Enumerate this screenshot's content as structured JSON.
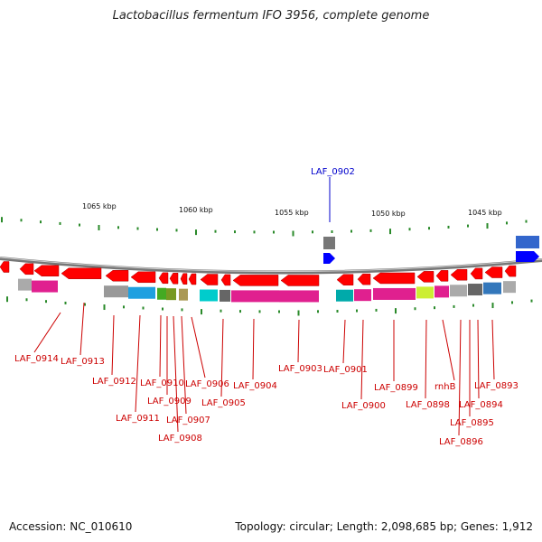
{
  "title": "Lactobacillus fermentum IFO 3956, complete genome",
  "accession": "Accession: NC_010610",
  "topology": "Topology: circular; Length: 2,098,685 bp; Genes: 1,912",
  "scale_labels": [
    "1065 kbp",
    "1060 kbp",
    "1055 kbp",
    "1050 kbp",
    "1045 kbp"
  ],
  "top_gene_label": "LAF_0902",
  "gene_labels": [
    "LAF_0914",
    "LAF_0913",
    "LAF_0912",
    "LAF_0911",
    "LAF_0910",
    "LAF_0909",
    "LAF_0908",
    "LAF_0907",
    "LAF_0906",
    "LAF_0905",
    "LAF_0904",
    "LAF_0903",
    "LAF_0901",
    "LAF_0900",
    "LAF_0899",
    "LAF_0898",
    "rnhB",
    "LAF_0896",
    "LAF_0895",
    "LAF_0894",
    "LAF_0893"
  ],
  "colors": {
    "forward_gene": "#0000ff",
    "reverse_gene": "#ff0000",
    "backbone": "#888888",
    "tick": "#2a8a2a",
    "label_line_reverse": "#cc0000",
    "label_line_forward": "#0000cc"
  }
}
